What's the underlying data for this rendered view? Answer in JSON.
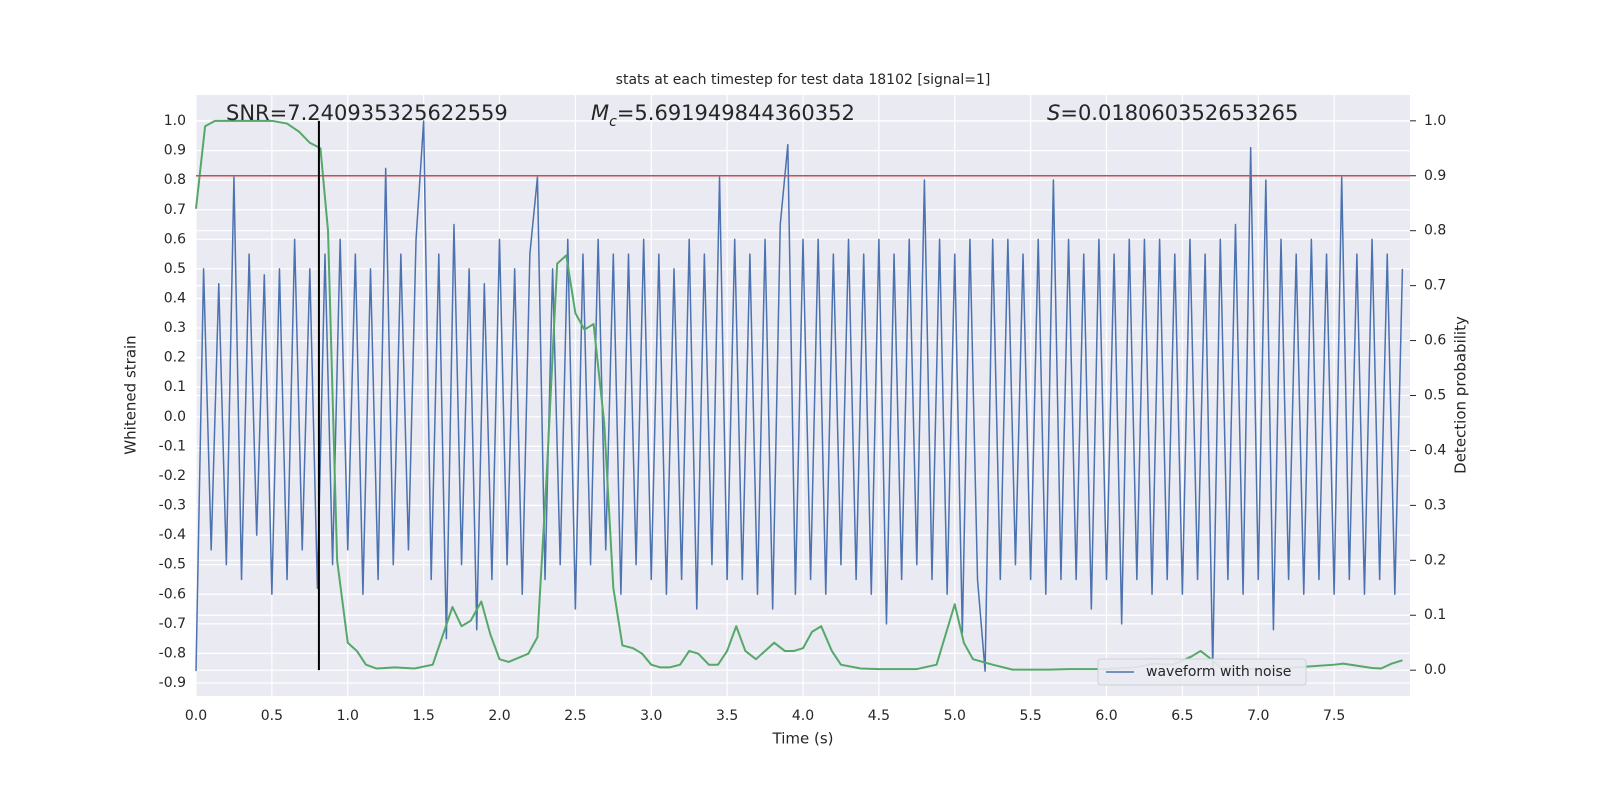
{
  "chart_data": {
    "type": "line",
    "title": "stats at each timestep for test data 18102 [signal=1]",
    "x_label": "Time (s)",
    "y_label": "Whitened strain",
    "y2_label": "Detection probability",
    "annotations": [
      {
        "text": "SNR=7.240935325622559"
      },
      {
        "symbol": "M",
        "subscript": "c",
        "text": "=5.691949844360352"
      },
      {
        "symbol": "S",
        "text": "=0.018060352653265"
      }
    ],
    "xlim": [
      0,
      8.0
    ],
    "ylim": [
      -0.944,
      1.088
    ],
    "y2lim": [
      -0.047,
      1.047
    ],
    "xticks": [
      {
        "value": 0,
        "label": "0.0"
      },
      0.5,
      {
        "value": 1,
        "label": "1.0"
      },
      1.5,
      {
        "value": 2,
        "label": "2.0"
      },
      2.5,
      {
        "value": 3,
        "label": "3.0"
      },
      3.5,
      {
        "value": 4,
        "label": "4.0"
      },
      4.5,
      {
        "value": 5,
        "label": "5.0"
      },
      5.5,
      {
        "value": 6,
        "label": "6.0"
      },
      6.5,
      {
        "value": 7,
        "label": "7.0"
      },
      7.5
    ],
    "yticks": [
      -0.9,
      -0.8,
      -0.7,
      -0.6,
      -0.5,
      -0.4,
      -0.3,
      -0.2,
      -0.1,
      {
        "value": 0,
        "label": "0.0"
      },
      0.1,
      0.2,
      0.3,
      0.4,
      0.5,
      0.6,
      0.7,
      0.8,
      0.9,
      {
        "value": 1,
        "label": "1.0"
      }
    ],
    "y2ticks": [
      {
        "value": 0,
        "label": "0.0"
      },
      0.1,
      0.2,
      0.3,
      0.4,
      0.5,
      0.6,
      0.7,
      0.8,
      0.9,
      {
        "value": 1,
        "label": "1.0"
      }
    ],
    "grid": true,
    "legend": "lower right",
    "threshold": {
      "value": 0.9,
      "axis": "y2",
      "color": "#c44e52"
    },
    "vline": {
      "x": 0.81,
      "ymin": 0,
      "ymax": 1,
      "axis": "y2",
      "color": "#000000"
    },
    "series": [
      {
        "name": "waveform with noise",
        "color": "#4c72b0",
        "x": [
          0,
          0.05,
          0.1,
          0.15,
          0.2,
          0.25,
          0.3,
          0.35,
          0.4,
          0.45,
          0.5,
          0.55,
          0.6,
          0.65,
          0.7,
          0.75,
          0.8,
          0.85,
          0.9,
          0.95,
          1,
          1.05,
          1.1,
          1.15,
          1.2,
          1.25,
          1.3,
          1.35,
          1.4,
          1.45,
          1.5,
          1.55,
          1.6,
          1.65,
          1.7,
          1.75,
          1.8,
          1.85,
          1.9,
          1.95,
          2,
          2.05,
          2.1,
          2.15,
          2.2,
          2.25,
          2.3,
          2.35,
          2.4,
          2.45,
          2.5,
          2.55,
          2.6,
          2.65,
          2.7,
          2.75,
          2.8,
          2.85,
          2.9,
          2.95,
          3,
          3.05,
          3.1,
          3.15,
          3.2,
          3.25,
          3.3,
          3.35,
          3.4,
          3.45,
          3.5,
          3.55,
          3.6,
          3.65,
          3.7,
          3.75,
          3.8,
          3.85,
          3.9,
          3.95,
          4,
          4.05,
          4.1,
          4.15,
          4.2,
          4.25,
          4.3,
          4.35,
          4.4,
          4.45,
          4.5,
          4.55,
          4.6,
          4.65,
          4.7,
          4.75,
          4.8,
          4.85,
          4.9,
          4.95,
          5,
          5.05,
          5.1,
          5.15,
          5.2,
          5.25,
          5.3,
          5.35,
          5.4,
          5.45,
          5.5,
          5.55,
          5.6,
          5.65,
          5.7,
          5.75,
          5.8,
          5.85,
          5.9,
          5.95,
          6,
          6.05,
          6.1,
          6.15,
          6.2,
          6.25,
          6.3,
          6.35,
          6.4,
          6.45,
          6.5,
          6.55,
          6.6,
          6.65,
          6.7,
          6.75,
          6.8,
          6.85,
          6.9,
          6.95,
          7,
          7.05,
          7.1,
          7.15,
          7.2,
          7.25,
          7.3,
          7.35,
          7.4,
          7.45,
          7.5,
          7.55,
          7.6,
          7.65,
          7.7,
          7.75,
          7.8,
          7.85,
          7.9,
          7.95
        ],
        "values": [
          -0.86,
          0.5,
          -0.45,
          0.45,
          -0.5,
          0.81,
          -0.55,
          0.55,
          -0.4,
          0.48,
          -0.6,
          0.5,
          -0.55,
          0.6,
          -0.45,
          0.5,
          -0.58,
          0.55,
          -0.5,
          0.6,
          -0.45,
          0.55,
          -0.6,
          0.5,
          -0.55,
          0.84,
          -0.5,
          0.55,
          -0.45,
          0.6,
          1.0,
          -0.55,
          0.55,
          -0.75,
          0.65,
          -0.5,
          0.5,
          -0.72,
          0.45,
          -0.55,
          0.6,
          -0.5,
          0.5,
          -0.6,
          0.55,
          0.81,
          -0.55,
          0.5,
          -0.5,
          0.6,
          -0.65,
          0.55,
          -0.5,
          0.6,
          -0.45,
          0.55,
          -0.6,
          0.55,
          -0.5,
          0.6,
          -0.55,
          0.55,
          -0.6,
          0.5,
          -0.55,
          0.6,
          -0.65,
          0.55,
          -0.5,
          0.81,
          -0.55,
          0.6,
          -0.55,
          0.55,
          -0.6,
          0.6,
          -0.65,
          0.65,
          0.92,
          -0.6,
          0.6,
          -0.55,
          0.6,
          -0.6,
          0.55,
          -0.5,
          0.6,
          -0.55,
          0.55,
          -0.6,
          0.6,
          -0.7,
          0.55,
          -0.55,
          0.6,
          -0.5,
          0.8,
          -0.55,
          0.6,
          -0.6,
          0.55,
          -0.73,
          0.6,
          -0.55,
          -0.86,
          0.6,
          -0.55,
          0.6,
          -0.5,
          0.55,
          -0.55,
          0.6,
          -0.6,
          0.8,
          -0.55,
          0.6,
          -0.55,
          0.55,
          -0.65,
          0.6,
          -0.55,
          0.55,
          -0.7,
          0.6,
          -0.55,
          0.6,
          -0.6,
          0.6,
          -0.55,
          0.55,
          -0.6,
          0.6,
          -0.55,
          0.55,
          -0.85,
          0.6,
          -0.55,
          0.65,
          -0.6,
          0.91,
          -0.55,
          0.8,
          -0.72,
          0.6,
          -0.55,
          0.55,
          -0.6,
          0.6,
          -0.55,
          0.55,
          -0.6,
          0.81,
          -0.55,
          0.55,
          -0.6,
          0.6,
          -0.55,
          0.55,
          -0.6,
          0.5
        ]
      },
      {
        "color": "#55a868",
        "axis": "y2",
        "x": [
          0,
          0.06,
          0.125,
          0.25,
          0.375,
          0.5,
          0.6,
          0.68,
          0.75,
          0.82,
          0.87,
          0.93,
          1.0,
          1.06,
          1.12,
          1.19,
          1.31,
          1.44,
          1.56,
          1.69,
          1.75,
          1.81,
          1.88,
          1.94,
          2.0,
          2.06,
          2.19,
          2.25,
          2.31,
          2.38,
          2.44,
          2.5,
          2.56,
          2.62,
          2.69,
          2.75,
          2.81,
          2.88,
          2.94,
          3.0,
          3.06,
          3.12,
          3.19,
          3.25,
          3.31,
          3.38,
          3.44,
          3.5,
          3.56,
          3.62,
          3.69,
          3.75,
          3.81,
          3.88,
          3.94,
          4.0,
          4.06,
          4.12,
          4.19,
          4.25,
          4.38,
          4.5,
          4.75,
          4.88,
          5.0,
          5.06,
          5.12,
          5.25,
          5.38,
          5.62,
          5.75,
          6.0,
          6.19,
          6.31,
          6.44,
          6.56,
          6.62,
          6.69,
          6.75,
          6.88,
          7.0,
          7.25,
          7.5,
          7.56,
          7.75,
          7.81,
          7.88,
          7.95
        ],
        "values": [
          0.84,
          0.99,
          1.0,
          1.0,
          1.0,
          1.0,
          0.995,
          0.98,
          0.96,
          0.95,
          0.8,
          0.2,
          0.05,
          0.035,
          0.01,
          0.003,
          0.005,
          0.003,
          0.01,
          0.115,
          0.08,
          0.09,
          0.125,
          0.065,
          0.02,
          0.015,
          0.03,
          0.06,
          0.35,
          0.74,
          0.755,
          0.65,
          0.62,
          0.63,
          0.45,
          0.15,
          0.045,
          0.04,
          0.03,
          0.01,
          0.005,
          0.005,
          0.01,
          0.035,
          0.03,
          0.01,
          0.01,
          0.035,
          0.08,
          0.035,
          0.02,
          0.035,
          0.05,
          0.035,
          0.035,
          0.04,
          0.07,
          0.08,
          0.035,
          0.01,
          0.003,
          0.002,
          0.002,
          0.01,
          0.12,
          0.05,
          0.02,
          0.01,
          0.001,
          0.001,
          0.002,
          0.002,
          0.005,
          0.012,
          0.01,
          0.025,
          0.035,
          0.02,
          0.005,
          0.003,
          0.002,
          0.005,
          0.01,
          0.012,
          0.004,
          0.003,
          0.012,
          0.018
        ]
      }
    ]
  }
}
